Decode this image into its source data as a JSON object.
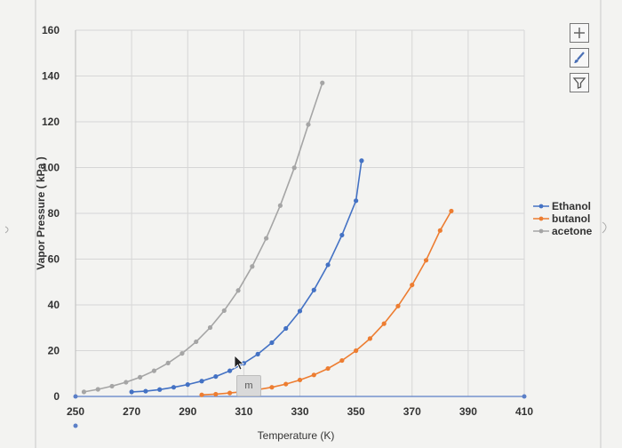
{
  "chart_data": {
    "type": "scatter",
    "xlabel": "Temperature (K)",
    "ylabel": "Vapor Pressure ( kPa )",
    "xlim": [
      250,
      410
    ],
    "ylim": [
      0,
      160
    ],
    "xticks": [
      "250",
      "270",
      "290",
      "310",
      "330",
      "350",
      "370",
      "390",
      "410"
    ],
    "yticks": [
      "0",
      "20",
      "40",
      "60",
      "80",
      "100",
      "120",
      "140",
      "160"
    ],
    "grid": true,
    "legend_position": "right",
    "series": [
      {
        "name": "Ethanol",
        "color": "#4472c4",
        "x": [
          270,
          275,
          280,
          285,
          290,
          295,
          300,
          305,
          310,
          315,
          320,
          325,
          330,
          335,
          340,
          345,
          350,
          352
        ],
        "y": [
          2,
          2.3,
          3.0,
          4.0,
          5.2,
          6.7,
          8.7,
          11.2,
          14.5,
          18.5,
          23.5,
          29.7,
          37.3,
          46.5,
          57.5,
          70.5,
          85.5,
          103
        ]
      },
      {
        "name": "butanol",
        "color": "#ed7d31",
        "x": [
          295,
          300,
          305,
          310,
          315,
          320,
          325,
          330,
          335,
          340,
          345,
          350,
          355,
          360,
          365,
          370,
          375,
          380,
          384
        ],
        "y": [
          0.7,
          1.0,
          1.5,
          2.1,
          3.0,
          4.0,
          5.4,
          7.2,
          9.4,
          12.2,
          15.7,
          20.0,
          25.3,
          31.8,
          39.5,
          48.7,
          59.5,
          72.5,
          81
        ]
      },
      {
        "name": "acetone",
        "color": "#a5a5a5",
        "x": [
          253,
          258,
          263,
          268,
          273,
          278,
          283,
          288,
          293,
          298,
          303,
          308,
          313,
          318,
          323,
          328,
          333,
          338
        ],
        "y": [
          2.0,
          3.1,
          4.5,
          6.2,
          8.4,
          11.2,
          14.6,
          18.8,
          23.9,
          30.1,
          37.5,
          46.3,
          56.8,
          69.1,
          83.4,
          99.9,
          118.8,
          137
        ]
      }
    ]
  },
  "overlay": {
    "tooltip_text": "m"
  },
  "toolbar": {
    "icons": [
      "chart-elements-plus-icon",
      "chart-styles-brush-icon",
      "chart-filters-funnel-icon"
    ]
  }
}
